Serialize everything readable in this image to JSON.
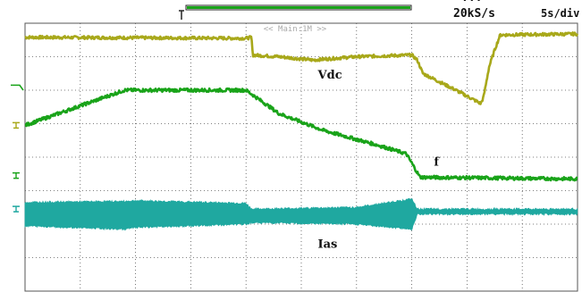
{
  "header": {
    "top_readout": "...",
    "sample_rate": "20kS/s",
    "time_per_div": "5s/div",
    "window_label": "<< Main:1M >>"
  },
  "colors": {
    "background": "#ffffff",
    "grid": "#555555",
    "vdc": "#a8a81a",
    "f": "#19a319",
    "ias": "#1fa8a0",
    "text": "#111111"
  },
  "chart_data": {
    "type": "line",
    "title": "",
    "xlabel": "",
    "ylabel": "",
    "grid": true,
    "divisions": {
      "x": 10,
      "y": 8
    },
    "xlim": [
      0,
      10
    ],
    "ylim": [
      0,
      8
    ],
    "series": [
      {
        "name": "Vdc",
        "points": [
          [
            0,
            7.58
          ],
          [
            4.0,
            7.55
          ],
          [
            4.1,
            7.58
          ],
          [
            4.12,
            7.05
          ],
          [
            4.6,
            7.0
          ],
          [
            5.2,
            6.9
          ],
          [
            6.0,
            7.0
          ],
          [
            7.0,
            7.05
          ],
          [
            7.1,
            6.9
          ],
          [
            7.2,
            6.5
          ],
          [
            7.8,
            6.0
          ],
          [
            8.25,
            5.6
          ],
          [
            8.3,
            5.8
          ],
          [
            8.4,
            6.7
          ],
          [
            8.5,
            7.2
          ],
          [
            8.6,
            7.65
          ],
          [
            10,
            7.68
          ]
        ],
        "noise": 0.09
      },
      {
        "name": "f",
        "points": [
          [
            0,
            4.95
          ],
          [
            1.8,
            6.0
          ],
          [
            4.0,
            6.0
          ],
          [
            4.6,
            5.3
          ],
          [
            5.4,
            4.8
          ],
          [
            6.4,
            4.35
          ],
          [
            6.9,
            4.1
          ],
          [
            7.15,
            3.4
          ],
          [
            10,
            3.35
          ]
        ],
        "noise": 0.1
      },
      {
        "name": "Ias",
        "type": "envelope",
        "upper": [
          [
            0,
            2.65
          ],
          [
            1.8,
            2.68
          ],
          [
            2.0,
            2.7
          ],
          [
            4.0,
            2.62
          ],
          [
            4.1,
            2.45
          ],
          [
            6.0,
            2.5
          ],
          [
            7.0,
            2.75
          ],
          [
            7.1,
            2.45
          ],
          [
            10,
            2.45
          ]
        ],
        "lower": [
          [
            0,
            1.95
          ],
          [
            1.8,
            1.85
          ],
          [
            2.0,
            1.9
          ],
          [
            4.0,
            2.0
          ],
          [
            4.1,
            2.05
          ],
          [
            6.0,
            2.0
          ],
          [
            7.0,
            1.85
          ],
          [
            7.1,
            2.3
          ],
          [
            10,
            2.3
          ]
        ]
      }
    ],
    "annotations": [
      {
        "text": "Vdc",
        "x": 5.3,
        "y": 6.35
      },
      {
        "text": "f",
        "x": 7.4,
        "y": 3.75
      },
      {
        "text": "Ias",
        "x": 5.3,
        "y": 1.3
      }
    ]
  }
}
